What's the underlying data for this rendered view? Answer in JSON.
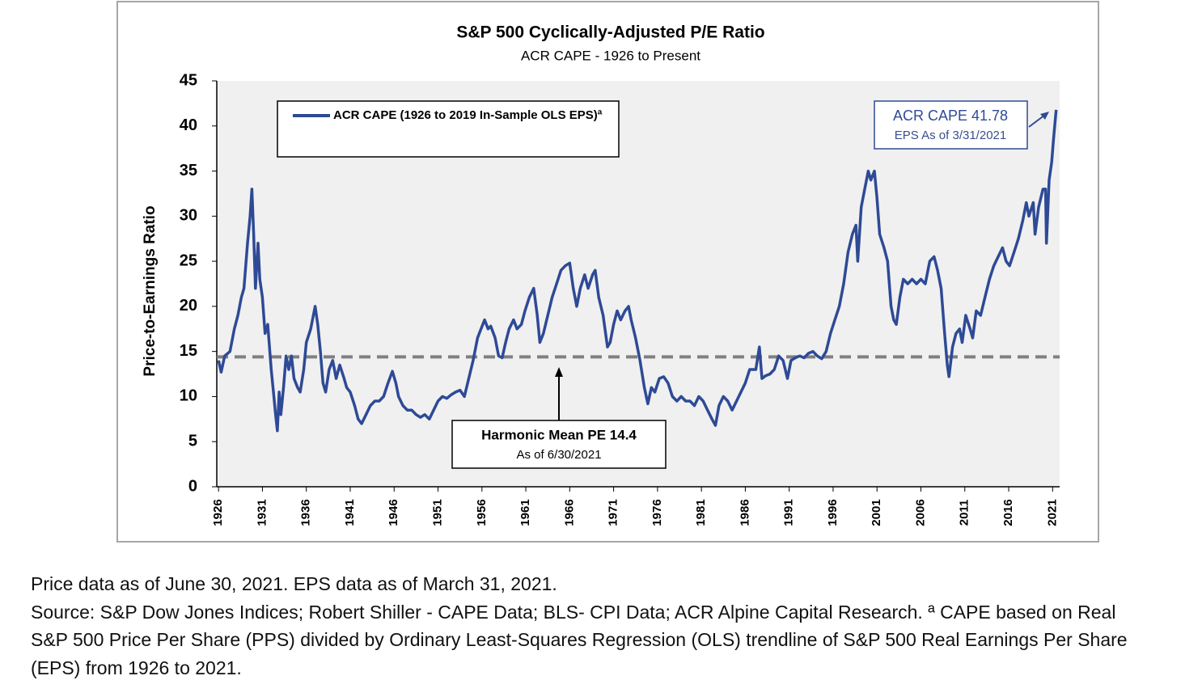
{
  "chart_data": {
    "type": "line",
    "title": "S&P 500 Cyclically-Adjusted P/E Ratio",
    "subtitle": "ACR CAPE - 1926 to Present",
    "y_label": "Price-to-Earnings Ratio",
    "xlim": [
      1925.8,
      2021.8
    ],
    "xticks": [
      1926,
      1931,
      1936,
      1941,
      1946,
      1951,
      1956,
      1961,
      1966,
      1971,
      1976,
      1981,
      1986,
      1991,
      1996,
      2001,
      2006,
      2011,
      2016,
      2021
    ],
    "ylim": [
      0,
      45
    ],
    "yticks": [
      0,
      5,
      10,
      15,
      20,
      25,
      30,
      35,
      40,
      45
    ],
    "grid": false,
    "legend_position": "upper left",
    "series": [
      {
        "name": "ACR CAPE (1926 to 2019 In-Sample OLS EPS)ª",
        "color": "#2e4a96",
        "x": [
          1926.0,
          1926.3,
          1926.7,
          1927.3,
          1927.8,
          1928.2,
          1928.6,
          1928.9,
          1929.3,
          1929.6,
          1929.8,
          1930.0,
          1930.2,
          1930.5,
          1930.7,
          1931.0,
          1931.3,
          1931.6,
          1932.0,
          1932.3,
          1932.5,
          1932.7,
          1932.9,
          1933.1,
          1933.4,
          1933.7,
          1934.0,
          1934.3,
          1934.6,
          1935.0,
          1935.3,
          1935.7,
          1936.0,
          1936.5,
          1937.0,
          1937.3,
          1937.6,
          1937.9,
          1938.2,
          1938.6,
          1939.0,
          1939.4,
          1939.8,
          1940.3,
          1940.6,
          1941.0,
          1941.5,
          1941.9,
          1942.3,
          1942.8,
          1943.3,
          1943.8,
          1944.3,
          1944.8,
          1945.3,
          1945.8,
          1946.2,
          1946.5,
          1947.0,
          1947.5,
          1948.0,
          1948.5,
          1949.0,
          1949.5,
          1950.0,
          1950.5,
          1951.0,
          1951.5,
          1952.0,
          1952.5,
          1953.0,
          1953.5,
          1954.0,
          1954.5,
          1955.0,
          1955.5,
          1955.9,
          1956.3,
          1956.7,
          1957.0,
          1957.5,
          1957.9,
          1958.3,
          1958.7,
          1959.1,
          1959.6,
          1960.0,
          1960.5,
          1960.9,
          1961.4,
          1961.9,
          1962.3,
          1962.6,
          1963.0,
          1963.5,
          1964.0,
          1964.5,
          1965.0,
          1965.5,
          1966.0,
          1966.4,
          1966.8,
          1967.2,
          1967.7,
          1968.1,
          1968.6,
          1968.9,
          1969.3,
          1969.8,
          1970.3,
          1970.6,
          1971.0,
          1971.4,
          1971.8,
          1972.3,
          1972.7,
          1973.0,
          1973.5,
          1974.0,
          1974.5,
          1974.9,
          1975.3,
          1975.7,
          1976.2,
          1976.7,
          1977.2,
          1977.7,
          1978.2,
          1978.7,
          1979.2,
          1979.7,
          1980.2,
          1980.7,
          1981.2,
          1981.7,
          1982.2,
          1982.6,
          1983.0,
          1983.5,
          1984.0,
          1984.5,
          1985.0,
          1985.5,
          1986.0,
          1986.5,
          1987.2,
          1987.6,
          1987.9,
          1988.3,
          1988.8,
          1989.3,
          1989.8,
          1990.3,
          1990.8,
          1991.2,
          1991.7,
          1992.2,
          1992.7,
          1993.2,
          1993.7,
          1994.2,
          1994.7,
          1995.2,
          1995.7,
          1996.2,
          1996.7,
          1997.2,
          1997.7,
          1998.2,
          1998.6,
          1998.8,
          1999.2,
          1999.6,
          2000.0,
          2000.3,
          2000.7,
          2001.0,
          2001.3,
          2001.8,
          2002.2,
          2002.6,
          2002.9,
          2003.2,
          2003.6,
          2004.0,
          2004.5,
          2005.0,
          2005.5,
          2006.0,
          2006.5,
          2007.0,
          2007.5,
          2007.9,
          2008.3,
          2008.7,
          2009.0,
          2009.2,
          2009.6,
          2010.0,
          2010.4,
          2010.7,
          2011.1,
          2011.6,
          2011.9,
          2012.3,
          2012.8,
          2013.3,
          2013.8,
          2014.3,
          2014.8,
          2015.3,
          2015.7,
          2016.1,
          2016.6,
          2017.1,
          2017.6,
          2018.0,
          2018.3,
          2018.8,
          2019.0,
          2019.4,
          2019.9,
          2020.2,
          2020.3,
          2020.6,
          2020.9,
          2021.1,
          2021.4
        ],
        "values": [
          14,
          12.7,
          14.5,
          15,
          17.5,
          19,
          21,
          22,
          27,
          30,
          33,
          28,
          22,
          27,
          23,
          21,
          17,
          18,
          13,
          10,
          8,
          6.2,
          10.5,
          8,
          11,
          14.5,
          13,
          14.5,
          12,
          11,
          10.5,
          13,
          16,
          17.5,
          20,
          18,
          15,
          11.5,
          10.5,
          13,
          14,
          12,
          13.5,
          12,
          11,
          10.5,
          9,
          7.5,
          7,
          8,
          9,
          9.5,
          9.5,
          10,
          11.5,
          12.8,
          11.5,
          10,
          9,
          8.5,
          8.5,
          8,
          7.7,
          8,
          7.5,
          8.5,
          9.5,
          10,
          9.8,
          10.2,
          10.5,
          10.7,
          10,
          12,
          14,
          16.5,
          17.5,
          18.5,
          17.5,
          17.8,
          16.5,
          14.5,
          14.3,
          16,
          17.5,
          18.5,
          17.5,
          18,
          19.5,
          21,
          22,
          19,
          16,
          17,
          19,
          21,
          22.5,
          24,
          24.5,
          24.8,
          22,
          20,
          22,
          23.5,
          22,
          23.5,
          24,
          21,
          19,
          15.5,
          16,
          18,
          19.5,
          18.5,
          19.5,
          20,
          18.5,
          16.5,
          14,
          11,
          9.2,
          11,
          10.5,
          12,
          12.2,
          11.5,
          10,
          9.5,
          10,
          9.5,
          9.5,
          9,
          10,
          9.5,
          8.5,
          7.5,
          6.8,
          9,
          10,
          9.5,
          8.5,
          9.5,
          10.5,
          11.5,
          13,
          13,
          15.5,
          12,
          12.3,
          12.5,
          13,
          14.5,
          14,
          12,
          14,
          14.3,
          14.5,
          14.3,
          14.8,
          15,
          14.5,
          14.2,
          15,
          17,
          18.5,
          20,
          22.5,
          26,
          28,
          29,
          25,
          31,
          33,
          35,
          34,
          35,
          32,
          28,
          26.5,
          25,
          20,
          18.5,
          18,
          21,
          23,
          22.5,
          23,
          22.5,
          23,
          22.5,
          25,
          25.5,
          24,
          22,
          17,
          13.5,
          12.2,
          15.5,
          17,
          17.5,
          16,
          19,
          17.5,
          16.5,
          19.5,
          19,
          21,
          23,
          24.5,
          25.5,
          26.5,
          25,
          24.5,
          26,
          27.5,
          29.5,
          31.5,
          30,
          31.5,
          28,
          31,
          33,
          33,
          27,
          34,
          36,
          38.5,
          41.78
        ]
      }
    ],
    "reference_lines": [
      {
        "name": "Harmonic Mean PE (1926 to 2021)",
        "value": 14.4,
        "color": "#808080"
      }
    ],
    "annotations": [
      {
        "title": "ACR CAPE 41.78",
        "text": "EPS As of 3/31/2021"
      },
      {
        "title": "Harmonic Mean PE 14.4",
        "text": "As of 6/30/2021"
      }
    ],
    "footnote": [
      "Price data as of June 30, 2021. EPS data as of March 31, 2021.",
      "Source: S&P Dow Jones Indices; Robert Shiller - CAPE Data; BLS- CPI Data; ACR Alpine Capital Research. ª CAPE based on Real",
      "S&P 500 Price Per Share (PPS) divided by Ordinary Least-Squares Regression (OLS) trendline of S&P 500 Real Earnings Per Share",
      "(EPS) from 1926 to 2021."
    ]
  }
}
